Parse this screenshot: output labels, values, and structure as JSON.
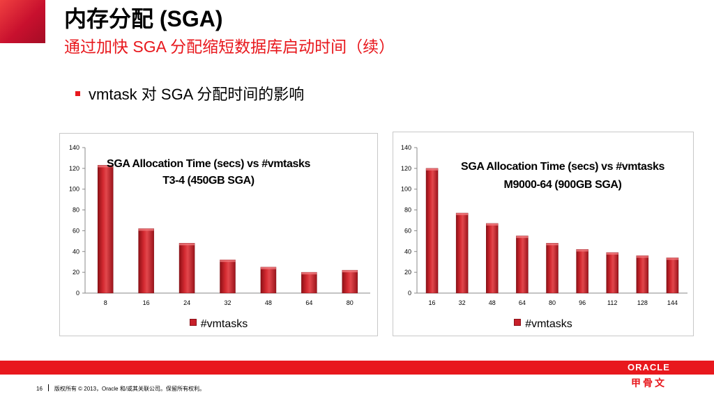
{
  "header": {
    "title": "内存分配 (SGA)",
    "subtitle": "通过加快 SGA 分配缩短数据库启动时间（续）"
  },
  "bullet": "vmtask 对 SGA 分配时间的影响",
  "chart_data": [
    {
      "type": "bar",
      "title": "SGA Allocation Time (secs) vs #vmtasks",
      "subtitle": "T3-4 (450GB SGA)",
      "categories": [
        "8",
        "16",
        "24",
        "32",
        "48",
        "64",
        "80"
      ],
      "series": [
        {
          "name": "#vmtasks",
          "values": [
            123,
            62,
            48,
            32,
            25,
            20,
            22
          ]
        }
      ],
      "ylim": [
        0,
        140
      ],
      "yticks": [
        0,
        20,
        40,
        60,
        80,
        100,
        120,
        140
      ],
      "grid": false,
      "legend": "bottom",
      "color": "#c8202a"
    },
    {
      "type": "bar",
      "title": "SGA Allocation Time (secs) vs #vmtasks",
      "subtitle": "M9000-64 (900GB SGA)",
      "categories": [
        "16",
        "32",
        "48",
        "64",
        "80",
        "96",
        "112",
        "128",
        "144"
      ],
      "series": [
        {
          "name": "#vmtasks",
          "values": [
            120,
            77,
            67,
            55,
            48,
            42,
            39,
            36,
            34
          ]
        }
      ],
      "ylim": [
        0,
        140
      ],
      "yticks": [
        0,
        20,
        40,
        60,
        80,
        100,
        120,
        140
      ],
      "grid": false,
      "legend": "bottom",
      "color": "#c8202a"
    }
  ],
  "footer": {
    "page_number": "16",
    "copyright": "版权所有 © 2013，Oracle 和/或其关联公司。保留所有权利。"
  },
  "logo": {
    "brand": "ORACLE",
    "brand_cn": "甲骨文"
  }
}
